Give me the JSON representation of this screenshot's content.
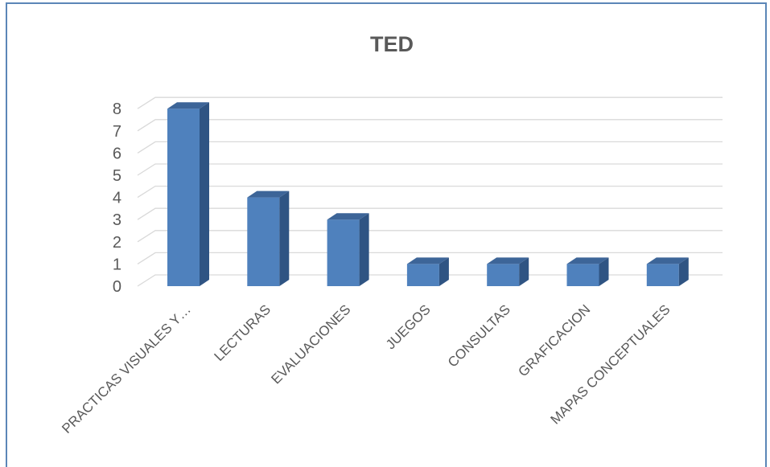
{
  "chart_data": {
    "type": "bar",
    "title": "TED",
    "categories": [
      "PRACTICAS VISUALES Y…",
      "LECTURAS",
      "EVALUACIONES",
      "JUEGOS",
      "CONSULTAS",
      "GRAFICACION",
      "MAPAS CONCEPTUALES"
    ],
    "values": [
      8,
      4,
      3,
      1,
      1,
      1,
      1
    ],
    "ylim": [
      0,
      8
    ],
    "yticks": [
      0,
      1,
      2,
      3,
      4,
      5,
      6,
      7,
      8
    ],
    "grid": true,
    "legend": "none",
    "style": "3d-column",
    "colors": {
      "front": "#4f81bd",
      "side": "#2f5483",
      "top": "#3d6598",
      "grid": "#d9d9d9",
      "text": "#595959",
      "border": "#5b86b7"
    }
  }
}
